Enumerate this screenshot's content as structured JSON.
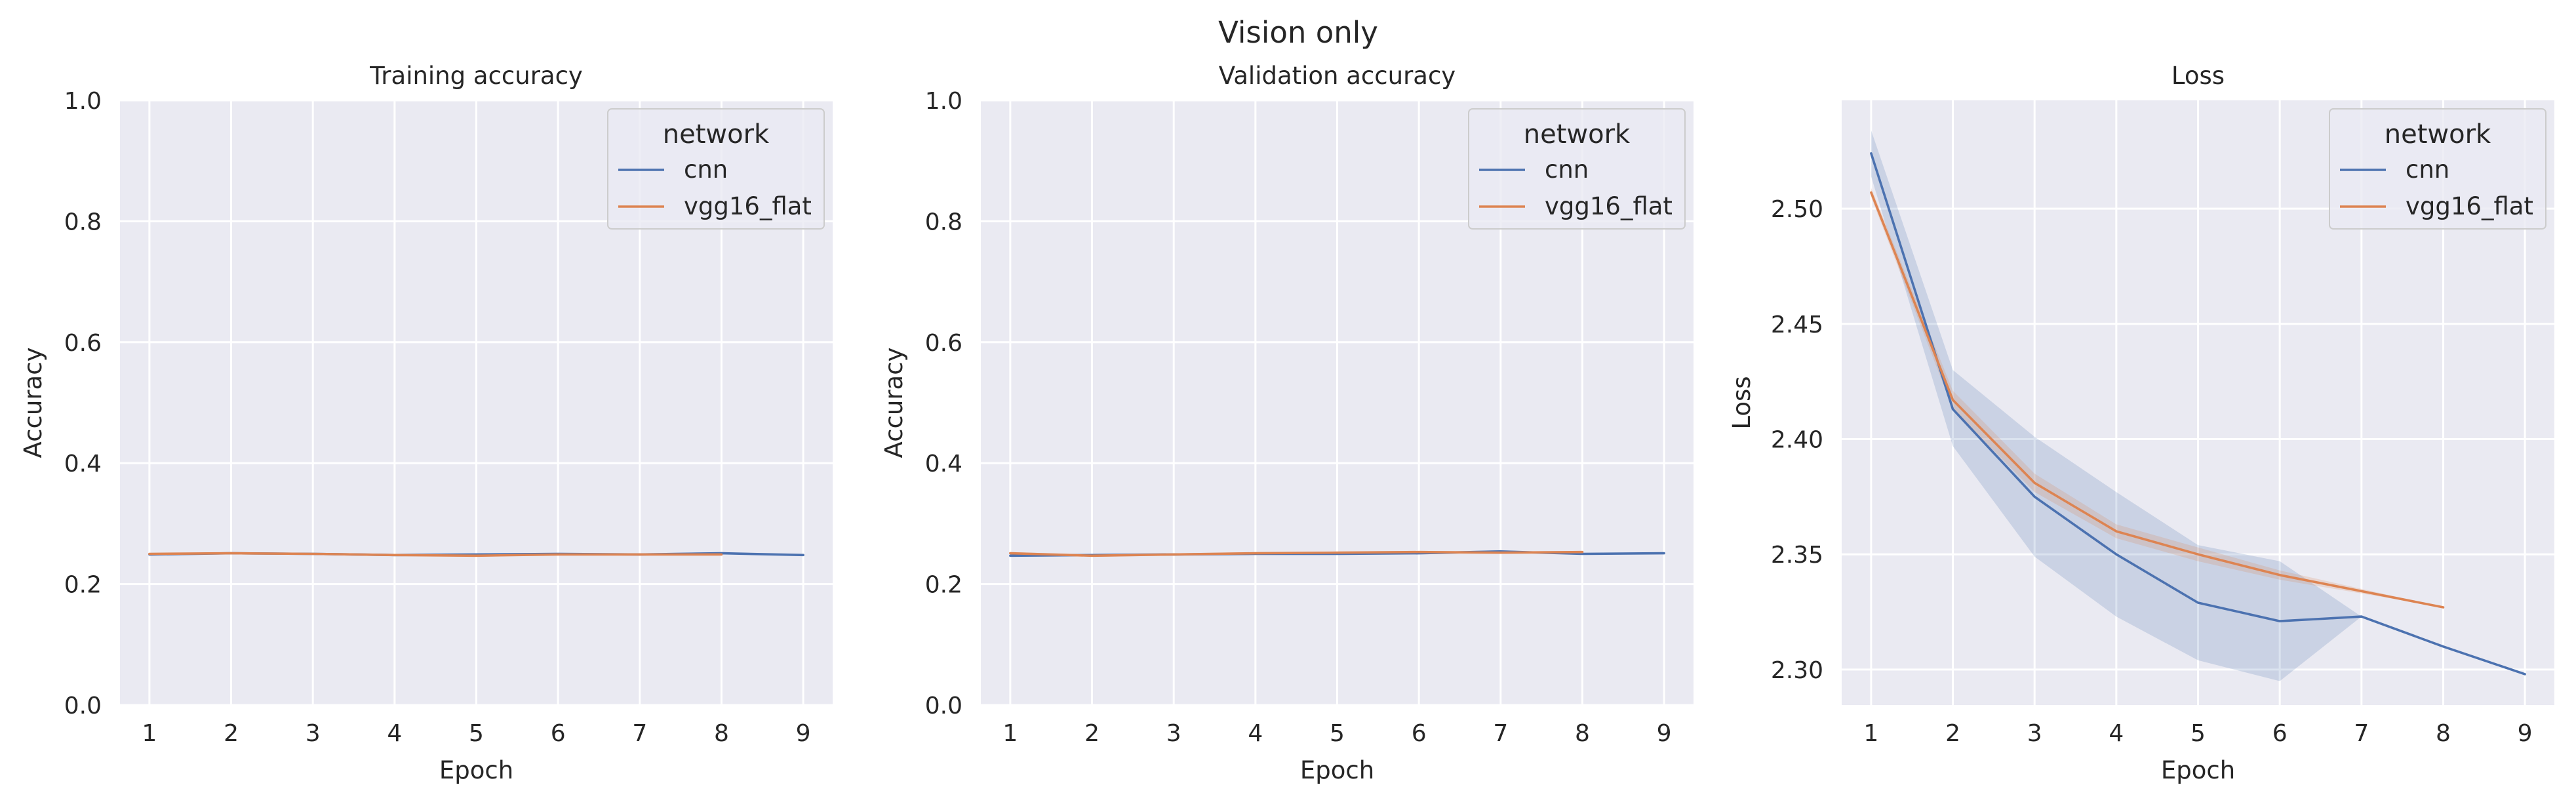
{
  "figure": {
    "title": "Vision only"
  },
  "colors": {
    "background": "#eaeaf2",
    "grid": "#ffffff",
    "cnn": "#4c72b0",
    "vgg16_flat": "#dd8452"
  },
  "chart_data": [
    {
      "type": "line",
      "title": "Training accuracy",
      "xlabel": "Epoch",
      "ylabel": "Accuracy",
      "xlim": [
        0.64,
        9.36
      ],
      "ylim": [
        0.0,
        1.0
      ],
      "xticks": [
        1,
        2,
        3,
        4,
        5,
        6,
        7,
        8,
        9
      ],
      "yticks": [
        0.0,
        0.2,
        0.4,
        0.6,
        0.8,
        1.0
      ],
      "ytick_decimals": 1,
      "grid": true,
      "legend": {
        "title": "network",
        "position": "top-right"
      },
      "series": [
        {
          "name": "cnn",
          "color": "#4c72b0",
          "x": [
            1,
            2,
            3,
            4,
            5,
            6,
            7,
            8,
            9
          ],
          "y": [
            0.249,
            0.251,
            0.25,
            0.248,
            0.249,
            0.25,
            0.249,
            0.251,
            0.248
          ],
          "band_low": [
            0.247,
            0.249,
            0.248,
            0.246,
            0.246,
            0.248,
            0.248,
            0.249,
            0.248
          ],
          "band_high": [
            0.251,
            0.253,
            0.252,
            0.25,
            0.251,
            0.252,
            0.251,
            0.253,
            0.248
          ]
        },
        {
          "name": "vgg16_flat",
          "color": "#dd8452",
          "x": [
            1,
            2,
            3,
            4,
            5,
            6,
            7,
            8
          ],
          "y": [
            0.25,
            0.251,
            0.25,
            0.248,
            0.247,
            0.249,
            0.249,
            0.249
          ],
          "band_low": [
            0.249,
            0.25,
            0.249,
            0.247,
            0.245,
            0.248,
            0.248,
            0.248
          ],
          "band_high": [
            0.251,
            0.252,
            0.251,
            0.249,
            0.249,
            0.25,
            0.25,
            0.25
          ]
        }
      ]
    },
    {
      "type": "line",
      "title": "Validation accuracy",
      "xlabel": "Epoch",
      "ylabel": "Accuracy",
      "xlim": [
        0.64,
        9.36
      ],
      "ylim": [
        0.0,
        1.0
      ],
      "xticks": [
        1,
        2,
        3,
        4,
        5,
        6,
        7,
        8,
        9
      ],
      "yticks": [
        0.0,
        0.2,
        0.4,
        0.6,
        0.8,
        1.0
      ],
      "ytick_decimals": 1,
      "grid": true,
      "legend": {
        "title": "network",
        "position": "top-right"
      },
      "series": [
        {
          "name": "cnn",
          "color": "#4c72b0",
          "x": [
            1,
            2,
            3,
            4,
            5,
            6,
            7,
            8,
            9
          ],
          "y": [
            0.247,
            0.248,
            0.249,
            0.25,
            0.25,
            0.251,
            0.254,
            0.25,
            0.251
          ],
          "band_low": [
            0.245,
            0.246,
            0.247,
            0.248,
            0.248,
            0.249,
            0.252,
            0.249,
            0.251
          ],
          "band_high": [
            0.249,
            0.25,
            0.251,
            0.252,
            0.252,
            0.253,
            0.256,
            0.251,
            0.251
          ]
        },
        {
          "name": "vgg16_flat",
          "color": "#dd8452",
          "x": [
            1,
            2,
            3,
            4,
            5,
            6,
            7,
            8
          ],
          "y": [
            0.251,
            0.247,
            0.249,
            0.251,
            0.252,
            0.253,
            0.252,
            0.253
          ],
          "band_low": [
            0.249,
            0.245,
            0.247,
            0.249,
            0.25,
            0.251,
            0.25,
            0.251
          ],
          "band_high": [
            0.253,
            0.249,
            0.251,
            0.253,
            0.254,
            0.255,
            0.254,
            0.255
          ]
        }
      ]
    },
    {
      "type": "line",
      "title": "Loss",
      "xlabel": "Epoch",
      "ylabel": "Loss",
      "xlim": [
        0.64,
        9.36
      ],
      "ylim": [
        2.2846,
        2.547
      ],
      "xticks": [
        1,
        2,
        3,
        4,
        5,
        6,
        7,
        8,
        9
      ],
      "yticks": [
        2.3,
        2.35,
        2.4,
        2.45,
        2.5
      ],
      "ytick_decimals": 2,
      "grid": true,
      "legend": {
        "title": "network",
        "position": "top-right"
      },
      "series": [
        {
          "name": "cnn",
          "color": "#4c72b0",
          "x": [
            1,
            2,
            3,
            4,
            5,
            6,
            7,
            8,
            9
          ],
          "y": [
            2.524,
            2.413,
            2.375,
            2.35,
            2.329,
            2.321,
            2.323,
            2.31,
            2.298
          ],
          "band_low": [
            2.514,
            2.397,
            2.349,
            2.323,
            2.304,
            2.295,
            2.323,
            2.31,
            2.298
          ],
          "band_high": [
            2.534,
            2.43,
            2.401,
            2.377,
            2.354,
            2.347,
            2.323,
            2.31,
            2.298
          ]
        },
        {
          "name": "vgg16_flat",
          "color": "#dd8452",
          "x": [
            1,
            2,
            3,
            4,
            5,
            6,
            7,
            8
          ],
          "y": [
            2.507,
            2.417,
            2.381,
            2.36,
            2.35,
            2.341,
            2.334,
            2.327
          ],
          "band_low": [
            2.505,
            2.413,
            2.377,
            2.357,
            2.347,
            2.339,
            2.333,
            2.327
          ],
          "band_high": [
            2.509,
            2.421,
            2.385,
            2.363,
            2.353,
            2.343,
            2.335,
            2.327
          ]
        }
      ]
    }
  ]
}
